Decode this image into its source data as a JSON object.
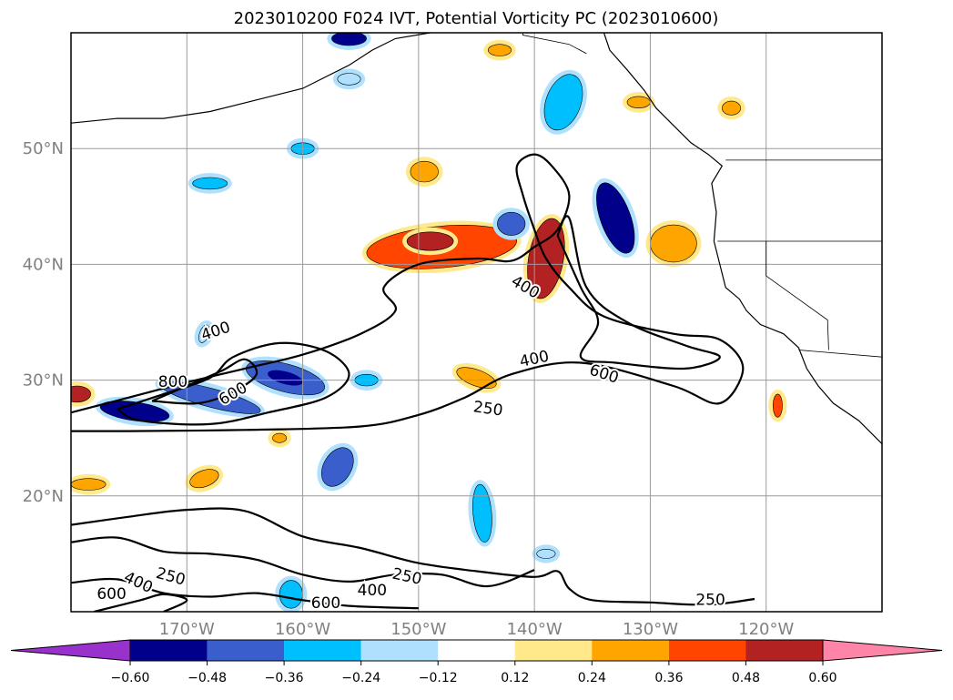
{
  "chart_data": {
    "type": "heatmap",
    "title": "2023010200 F024 IVT, Potential Vorticity PC (2023010600)",
    "x_axis": {
      "type": "longitude",
      "range": [
        -180,
        -110
      ],
      "ticks": [
        -170,
        -160,
        -150,
        -140,
        -130,
        -120
      ],
      "tick_labels": [
        "170°W",
        "160°W",
        "150°W",
        "140°W",
        "130°W",
        "120°W"
      ]
    },
    "y_axis": {
      "type": "latitude",
      "range": [
        10,
        60
      ],
      "ticks": [
        20,
        30,
        40,
        50
      ],
      "tick_labels": [
        "20°N",
        "30°N",
        "40°N",
        "50°N"
      ]
    },
    "grid": true,
    "colorbar": {
      "orientation": "horizontal",
      "extend": "both",
      "levels": [
        -0.6,
        -0.48,
        -0.36,
        -0.24,
        -0.12,
        0.12,
        0.24,
        0.36,
        0.48,
        0.6
      ],
      "tick_labels": [
        "−0.60",
        "−0.48",
        "−0.36",
        "−0.24",
        "−0.12",
        "0.12",
        "0.24",
        "0.36",
        "0.48",
        "0.60"
      ],
      "colors": [
        "#9932cc",
        "#00008b",
        "#3a5fcd",
        "#00bfff",
        "#afe1ff",
        "#ffffff",
        "#ffe98a",
        "#ffa500",
        "#ff4500",
        "#b22222",
        "#ff85a8"
      ]
    },
    "ivt_contours": {
      "levels": [
        250,
        400,
        600,
        800
      ],
      "labels": [
        {
          "text": "400",
          "lon": -167.5,
          "lat": 34.2,
          "rot": -18
        },
        {
          "text": "800",
          "lon": -171.2,
          "lat": 29.8,
          "rot": 0
        },
        {
          "text": "600",
          "lon": -166.0,
          "lat": 28.8,
          "rot": -30
        },
        {
          "text": "400",
          "lon": -140.8,
          "lat": 38.0,
          "rot": 30
        },
        {
          "text": "400",
          "lon": -140.0,
          "lat": 31.8,
          "rot": -12
        },
        {
          "text": "600",
          "lon": -134.0,
          "lat": 30.5,
          "rot": 18
        },
        {
          "text": "250",
          "lon": -144.0,
          "lat": 27.5,
          "rot": 8
        },
        {
          "text": "250",
          "lon": -151.0,
          "lat": 13.0,
          "rot": 12
        },
        {
          "text": "400",
          "lon": -154.0,
          "lat": 11.8,
          "rot": 0
        },
        {
          "text": "400",
          "lon": -174.2,
          "lat": 12.5,
          "rot": 25
        },
        {
          "text": "250",
          "lon": -171.4,
          "lat": 13.0,
          "rot": 15
        },
        {
          "text": "600",
          "lon": -176.5,
          "lat": 11.5,
          "rot": 0
        },
        {
          "text": "600",
          "lon": -158.0,
          "lat": 10.7,
          "rot": 0
        },
        {
          "text": "250",
          "lon": -124.8,
          "lat": 11.0,
          "rot": 0
        }
      ]
    },
    "pv_blobs": [
      {
        "lon": -148.0,
        "lat": 41.5,
        "rx": 6.5,
        "ry": 1.8,
        "rot": -5,
        "v": 0.36
      },
      {
        "lon": -149.0,
        "lat": 42.0,
        "rx": 2.0,
        "ry": 0.8,
        "rot": 0,
        "v": 0.48
      },
      {
        "lon": -139.0,
        "lat": 40.5,
        "rx": 1.5,
        "ry": 3.5,
        "rot": 10,
        "v": 0.48
      },
      {
        "lon": -128.0,
        "lat": 41.8,
        "rx": 2.0,
        "ry": 1.6,
        "rot": 0,
        "v": 0.3
      },
      {
        "lon": -149.5,
        "lat": 48.0,
        "rx": 1.2,
        "ry": 0.9,
        "rot": 0,
        "v": 0.3
      },
      {
        "lon": -133.0,
        "lat": 44.0,
        "rx": 1.3,
        "ry": 3.2,
        "rot": -20,
        "v": -0.5
      },
      {
        "lon": -142.0,
        "lat": 43.5,
        "rx": 1.2,
        "ry": 1.0,
        "rot": 0,
        "v": -0.4
      },
      {
        "lon": -161.5,
        "lat": 30.2,
        "rx": 3.5,
        "ry": 1.2,
        "rot": 15,
        "v": -0.45
      },
      {
        "lon": -168.0,
        "lat": 28.5,
        "rx": 4.5,
        "ry": 0.8,
        "rot": 15,
        "v": -0.4
      },
      {
        "lon": -174.5,
        "lat": 27.3,
        "rx": 3.0,
        "ry": 0.8,
        "rot": 8,
        "v": -0.5
      },
      {
        "lon": -145.0,
        "lat": 30.2,
        "rx": 1.8,
        "ry": 0.7,
        "rot": 20,
        "v": 0.3
      },
      {
        "lon": -137.5,
        "lat": 54.0,
        "rx": 1.5,
        "ry": 2.5,
        "rot": 20,
        "v": -0.3
      },
      {
        "lon": -156.0,
        "lat": 59.5,
        "rx": 1.5,
        "ry": 0.6,
        "rot": 0,
        "v": -0.5
      },
      {
        "lon": -157.0,
        "lat": 22.5,
        "rx": 1.2,
        "ry": 1.8,
        "rot": 30,
        "v": -0.4
      },
      {
        "lon": -144.5,
        "lat": 18.5,
        "rx": 0.8,
        "ry": 2.5,
        "rot": -5,
        "v": -0.3
      },
      {
        "lon": -161.0,
        "lat": 11.5,
        "rx": 1.0,
        "ry": 1.2,
        "rot": 0,
        "v": -0.3
      },
      {
        "lon": -179.5,
        "lat": 28.8,
        "rx": 1.2,
        "ry": 0.7,
        "rot": 0,
        "v": 0.48
      },
      {
        "lon": -178.5,
        "lat": 21.0,
        "rx": 1.5,
        "ry": 0.5,
        "rot": 0,
        "v": 0.3
      },
      {
        "lon": -168.5,
        "lat": 21.5,
        "rx": 1.3,
        "ry": 0.7,
        "rot": -20,
        "v": 0.3
      },
      {
        "lon": -154.5,
        "lat": 30.0,
        "rx": 1.0,
        "ry": 0.5,
        "rot": 0,
        "v": -0.3
      },
      {
        "lon": -119.0,
        "lat": 27.8,
        "rx": 0.4,
        "ry": 1.0,
        "rot": 0,
        "v": 0.4
      },
      {
        "lon": -143.0,
        "lat": 58.5,
        "rx": 1.0,
        "ry": 0.5,
        "rot": 0,
        "v": 0.3
      },
      {
        "lon": -131.0,
        "lat": 54.0,
        "rx": 1.0,
        "ry": 0.5,
        "rot": 0,
        "v": 0.3
      },
      {
        "lon": -123.0,
        "lat": 53.5,
        "rx": 0.8,
        "ry": 0.6,
        "rot": 0,
        "v": 0.3
      },
      {
        "lon": -160.0,
        "lat": 50.0,
        "rx": 1.0,
        "ry": 0.5,
        "rot": 0,
        "v": -0.3
      },
      {
        "lon": -168.0,
        "lat": 47.0,
        "rx": 1.5,
        "ry": 0.5,
        "rot": 0,
        "v": -0.3
      },
      {
        "lon": -156.0,
        "lat": 56.0,
        "rx": 1.0,
        "ry": 0.5,
        "rot": 0,
        "v": -0.2
      },
      {
        "lon": -162.0,
        "lat": 25.0,
        "rx": 0.6,
        "ry": 0.4,
        "rot": 0,
        "v": 0.3
      },
      {
        "lon": -168.5,
        "lat": 34.0,
        "rx": 0.4,
        "ry": 0.8,
        "rot": 20,
        "v": -0.2
      },
      {
        "lon": -139.0,
        "lat": 15.0,
        "rx": 0.8,
        "ry": 0.4,
        "rot": 0,
        "v": -0.2
      }
    ],
    "ivt_paths": [
      {
        "level": 400,
        "pts": [
          [
            -180,
            27.2
          ],
          [
            -175,
            28.5
          ],
          [
            -170,
            29.8
          ],
          [
            -165,
            31
          ],
          [
            -160,
            32.2
          ],
          [
            -155,
            34
          ],
          [
            -152,
            36
          ],
          [
            -153,
            38
          ],
          [
            -150,
            40
          ],
          [
            -145,
            40.5
          ],
          [
            -142,
            40.3
          ],
          [
            -140,
            41.5
          ],
          [
            -138,
            43
          ],
          [
            -137,
            46
          ],
          [
            -138.5,
            48.5
          ],
          [
            -140,
            49.5
          ],
          [
            -141.5,
            48.5
          ],
          [
            -141,
            46
          ],
          [
            -140,
            43
          ],
          [
            -139,
            40.5
          ],
          [
            -137,
            38
          ],
          [
            -134,
            35.5
          ],
          [
            -128,
            34
          ],
          [
            -124,
            33.5
          ],
          [
            -122,
            31
          ],
          [
            -124,
            28
          ],
          [
            -128,
            29.5
          ],
          [
            -136,
            31.5
          ],
          [
            -142,
            30.5
          ],
          [
            -146,
            28.5
          ],
          [
            -150,
            27
          ],
          [
            -155,
            26
          ],
          [
            -165,
            25.7
          ],
          [
            -175,
            25.6
          ],
          [
            -180,
            25.6
          ]
        ]
      },
      {
        "level": 600,
        "pts": [
          [
            -176,
            27.5
          ],
          [
            -172,
            28.8
          ],
          [
            -168,
            30.2
          ],
          [
            -166,
            32
          ],
          [
            -162,
            33.2
          ],
          [
            -158,
            32.5
          ],
          [
            -156,
            30.5
          ],
          [
            -158,
            28.5
          ],
          [
            -163,
            27.2
          ],
          [
            -168,
            26.2
          ],
          [
            -174,
            26.5
          ],
          [
            -176,
            27.5
          ]
        ]
      },
      {
        "level": 800,
        "pts": [
          [
            -173,
            28.2
          ],
          [
            -170,
            29.5
          ],
          [
            -167,
            30.8
          ],
          [
            -165,
            31.8
          ],
          [
            -164,
            30.5
          ],
          [
            -166,
            29
          ],
          [
            -169,
            28
          ],
          [
            -173,
            28.2
          ]
        ]
      },
      {
        "level": 600,
        "pts": [
          [
            -138,
            42.5
          ],
          [
            -137,
            44
          ],
          [
            -135.5,
            38
          ],
          [
            -132,
            35
          ],
          [
            -127,
            33
          ],
          [
            -124,
            32
          ],
          [
            -127,
            31
          ],
          [
            -133,
            31.5
          ],
          [
            -136,
            32
          ],
          [
            -134.5,
            35
          ],
          [
            -136,
            38
          ],
          [
            -138,
            42.5
          ]
        ]
      },
      {
        "level": 250,
        "pts": [
          [
            -180,
            17.5
          ],
          [
            -175,
            18.2
          ],
          [
            -170,
            18.8
          ],
          [
            -165,
            18.7
          ],
          [
            -160,
            16.5
          ],
          [
            -155,
            15.5
          ],
          [
            -150,
            14.2
          ],
          [
            -145,
            13.5
          ],
          [
            -140,
            13
          ],
          [
            -138,
            13.5
          ],
          [
            -137,
            12
          ],
          [
            -135,
            11
          ],
          [
            -130,
            10.8
          ],
          [
            -125,
            10.6
          ],
          [
            -121,
            11.1
          ]
        ]
      },
      {
        "level": 400,
        "pts": [
          [
            -180,
            16
          ],
          [
            -176,
            16.4
          ],
          [
            -172,
            15.2
          ],
          [
            -168,
            15
          ],
          [
            -164,
            14.5
          ],
          [
            -160,
            13.2
          ],
          [
            -156,
            12.6
          ],
          [
            -152,
            13.2
          ],
          [
            -148,
            13.2
          ],
          [
            -144,
            12.2
          ],
          [
            -140,
            13.6
          ]
        ]
      },
      {
        "level": 600,
        "pts": [
          [
            -180,
            12.5
          ],
          [
            -176,
            12.8
          ],
          [
            -172,
            11.6
          ],
          [
            -168,
            11.3
          ],
          [
            -164,
            11.6
          ],
          [
            -160,
            11
          ],
          [
            -156,
            10.5
          ],
          [
            -150,
            10.3
          ]
        ]
      },
      {
        "level": 800,
        "pts": [
          [
            -178,
            10
          ],
          [
            -174,
            11
          ],
          [
            -172,
            11.5
          ],
          [
            -170,
            11
          ],
          [
            -172,
            10
          ]
        ]
      }
    ],
    "coastlines": [
      [
        [
          -180,
          52.2
        ],
        [
          -176,
          52.6
        ],
        [
          -172,
          52.6
        ],
        [
          -168,
          53.2
        ],
        [
          -164,
          54.2
        ],
        [
          -160,
          55.2
        ],
        [
          -156,
          57.2
        ],
        [
          -154,
          58.5
        ],
        [
          -152,
          59.5
        ],
        [
          -149,
          60
        ]
      ],
      [
        [
          -134,
          60
        ],
        [
          -133.5,
          58.5
        ],
        [
          -132,
          56.8
        ],
        [
          -130.5,
          55
        ],
        [
          -129.5,
          53.5
        ],
        [
          -128,
          52
        ],
        [
          -126.5,
          50.5
        ],
        [
          -125,
          49.5
        ],
        [
          -123.8,
          48.5
        ],
        [
          -124.7,
          47
        ],
        [
          -124.3,
          44.5
        ],
        [
          -124.5,
          42
        ],
        [
          -124,
          40
        ],
        [
          -123.5,
          38
        ],
        [
          -122.3,
          37
        ],
        [
          -121.7,
          36
        ],
        [
          -120.5,
          34.8
        ],
        [
          -118.5,
          34
        ],
        [
          -117.2,
          32.8
        ],
        [
          -116.5,
          31
        ],
        [
          -115.5,
          29.5
        ],
        [
          -114.2,
          28
        ],
        [
          -112,
          26.5
        ],
        [
          -110,
          24.5
        ]
      ]
    ],
    "borders": [
      [
        [
          -123.5,
          49
        ],
        [
          -110,
          49
        ]
      ],
      [
        [
          -124.2,
          42
        ],
        [
          -110,
          42
        ]
      ],
      [
        [
          -117.2,
          32.6
        ],
        [
          -110,
          32
        ]
      ],
      [
        [
          -120,
          42
        ],
        [
          -120,
          39
        ],
        [
          -114.7,
          35.2
        ],
        [
          -114.6,
          32.6
        ]
      ],
      [
        [
          -141,
          60
        ],
        [
          -141,
          59.8
        ],
        [
          -137,
          59
        ],
        [
          -135.5,
          58.2
        ]
      ]
    ]
  }
}
